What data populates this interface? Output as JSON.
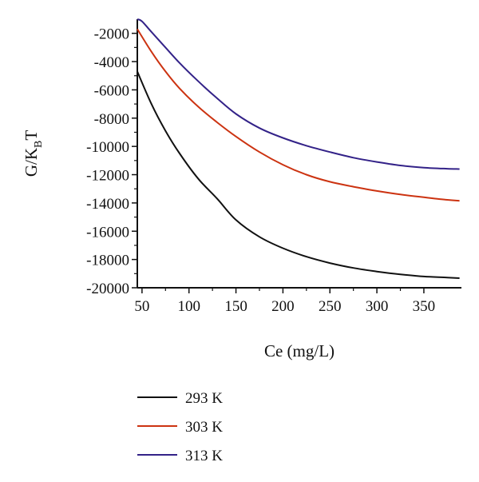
{
  "chart_data": {
    "type": "line",
    "title": "",
    "xlabel": "Ce (mg/L)",
    "ylabel": {
      "main": "G/K",
      "sub": "B",
      "tail": "T"
    },
    "xlim": [
      45,
      390
    ],
    "ylim": [
      -20000,
      -1000
    ],
    "xticks": [
      50,
      100,
      150,
      200,
      250,
      300,
      350
    ],
    "yticks": [
      -20000,
      -18000,
      -16000,
      -14000,
      -12000,
      -10000,
      -8000,
      -6000,
      -4000,
      -2000
    ],
    "grid": false,
    "legend_position": "bottom",
    "series": [
      {
        "name": "293 K",
        "color": "#111111",
        "x": [
          45,
          60,
          75,
          90,
          110,
          130,
          150,
          175,
          200,
          225,
          250,
          275,
          300,
          325,
          350,
          375,
          388
        ],
        "y": [
          -4700,
          -7000,
          -8900,
          -10500,
          -12300,
          -13700,
          -15200,
          -16400,
          -17200,
          -17800,
          -18250,
          -18600,
          -18850,
          -19050,
          -19200,
          -19280,
          -19320
        ]
      },
      {
        "name": "303 K",
        "color": "#cc3311",
        "x": [
          45,
          60,
          75,
          90,
          110,
          130,
          150,
          175,
          200,
          225,
          250,
          275,
          300,
          325,
          350,
          375,
          388
        ],
        "y": [
          -1700,
          -3300,
          -4700,
          -5900,
          -7200,
          -8300,
          -9300,
          -10400,
          -11300,
          -12000,
          -12500,
          -12850,
          -13150,
          -13400,
          -13600,
          -13780,
          -13850
        ]
      },
      {
        "name": "313 K",
        "color": "#332288",
        "x": [
          45,
          50,
          60,
          75,
          90,
          110,
          130,
          150,
          175,
          200,
          225,
          250,
          275,
          300,
          325,
          350,
          375,
          388
        ],
        "y": [
          -1000,
          -1150,
          -1900,
          -3000,
          -4100,
          -5400,
          -6600,
          -7700,
          -8700,
          -9400,
          -9950,
          -10400,
          -10800,
          -11100,
          -11350,
          -11500,
          -11580,
          -11600
        ]
      }
    ]
  }
}
